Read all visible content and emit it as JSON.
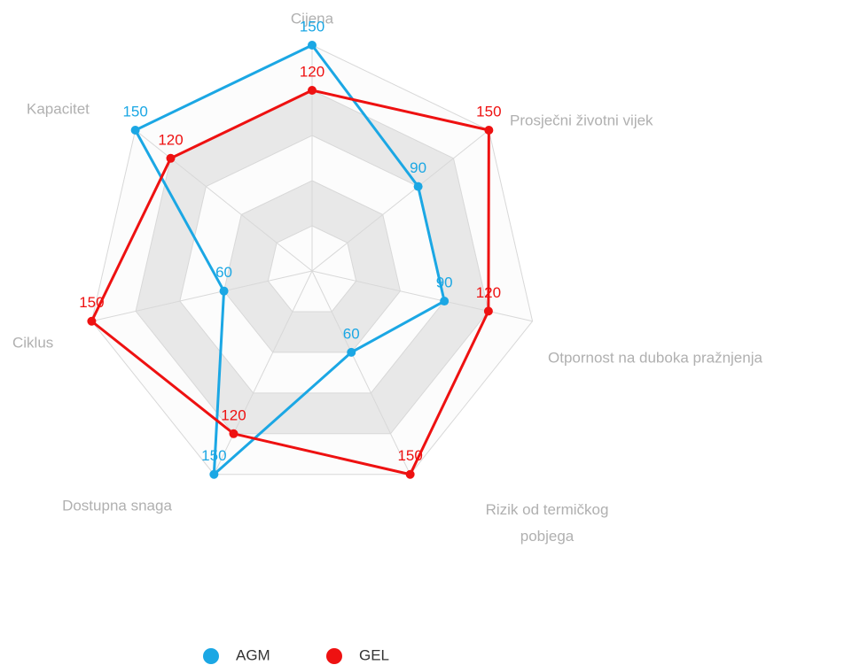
{
  "chart_data": {
    "type": "radar",
    "categories": [
      "Cijena",
      "Prosječni životni vijek",
      "Otpornost na duboka pražnjenja",
      "Rizik od termičkog pobjega",
      "Dostupna snaga",
      "Ciklus",
      "Kapacitet"
    ],
    "series": [
      {
        "name": "AGM",
        "color": "#1ba7e4",
        "values": [
          150,
          90,
          90,
          60,
          150,
          60,
          150
        ]
      },
      {
        "name": "GEL",
        "color": "#ee1111",
        "values": [
          120,
          150,
          120,
          150,
          120,
          150,
          120
        ]
      }
    ],
    "rlim": [
      0,
      150
    ],
    "rticks": [
      30,
      60,
      90,
      120,
      150
    ],
    "legend": "bottom"
  }
}
